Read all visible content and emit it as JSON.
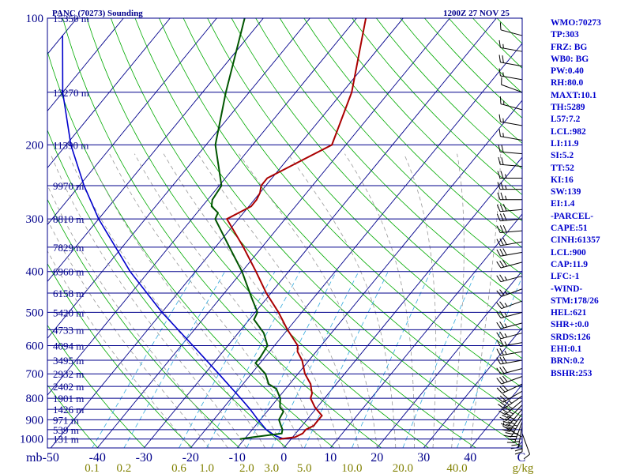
{
  "title_left": "PANC (70273) Sounding",
  "title_right": "1200Z 27 NOV 25",
  "colors": {
    "isobar": "#00008b",
    "isotherm": "#00008b",
    "dry_adiabat": "#00aa00",
    "moist_adiabat": "#999999",
    "mixing_ratio": "#33aadd",
    "temperature": "#aa0000",
    "dewpoint": "#005500",
    "parcel": "#0000cc",
    "wind": "#000000",
    "text": "#0000cd"
  },
  "chart_data": {
    "type": "skew-t",
    "pressure_ticks": [
      100,
      200,
      300,
      400,
      500,
      600,
      700,
      800,
      900,
      1000
    ],
    "pressure_range": [
      100,
      1050
    ],
    "temperature_ticks": [
      -50,
      -40,
      -30,
      -20,
      -10,
      0,
      10,
      20,
      30,
      40
    ],
    "temperature_tick_labels": [
      "-50",
      "-40",
      "-30",
      "-20",
      "-10",
      "0",
      "10",
      "20",
      "30",
      "40"
    ],
    "axis_unit_left": "mb",
    "axis_unit_right": "C",
    "mixing_ratio_values": [
      0.1,
      0.2,
      0.6,
      1.0,
      2.0,
      3.0,
      5.0,
      10.0,
      20.0,
      40.0
    ],
    "mixing_ratio_labels": [
      "0.1",
      "0.2",
      "0.6",
      "1.0",
      "2.0",
      "3.0",
      "5.0",
      "10.0",
      "20.0",
      "40.0"
    ],
    "mixing_ratio_unit": "g/kg",
    "heights": [
      {
        "p": 100,
        "label": "15350 m"
      },
      {
        "p": 150,
        "label": "13270 m"
      },
      {
        "p": 200,
        "label": "11390 m"
      },
      {
        "p": 250,
        "label": "9970 m"
      },
      {
        "p": 300,
        "label": "8810 m"
      },
      {
        "p": 350,
        "label": "7829 m"
      },
      {
        "p": 400,
        "label": "6960 m"
      },
      {
        "p": 450,
        "label": "6158 m"
      },
      {
        "p": 500,
        "label": "5420 m"
      },
      {
        "p": 550,
        "label": "4733 m"
      },
      {
        "p": 600,
        "label": "4094 m"
      },
      {
        "p": 650,
        "label": "3495 m"
      },
      {
        "p": 700,
        "label": "2932 m"
      },
      {
        "p": 750,
        "label": "2402 m"
      },
      {
        "p": 800,
        "label": "1901 m"
      },
      {
        "p": 850,
        "label": "1426 m"
      },
      {
        "p": 900,
        "label": "971 m"
      },
      {
        "p": 950,
        "label": "539 m"
      },
      {
        "p": 1000,
        "label": "131 m"
      }
    ],
    "temperature_profile": [
      {
        "p": 1000,
        "t": -2.5
      },
      {
        "p": 990,
        "t": 0.5
      },
      {
        "p": 970,
        "t": 1.5
      },
      {
        "p": 950,
        "t": 1.5
      },
      {
        "p": 930,
        "t": 2.5
      },
      {
        "p": 900,
        "t": 2.5
      },
      {
        "p": 880,
        "t": 2.5
      },
      {
        "p": 860,
        "t": 1.0
      },
      {
        "p": 840,
        "t": -0.5
      },
      {
        "p": 800,
        "t": -3.0
      },
      {
        "p": 780,
        "t": -3.5
      },
      {
        "p": 760,
        "t": -4.5
      },
      {
        "p": 740,
        "t": -5.5
      },
      {
        "p": 700,
        "t": -8.5
      },
      {
        "p": 650,
        "t": -11.5
      },
      {
        "p": 620,
        "t": -14.0
      },
      {
        "p": 600,
        "t": -15.0
      },
      {
        "p": 550,
        "t": -20.0
      },
      {
        "p": 500,
        "t": -25.0
      },
      {
        "p": 450,
        "t": -31.0
      },
      {
        "p": 400,
        "t": -37.0
      },
      {
        "p": 350,
        "t": -44.0
      },
      {
        "p": 300,
        "t": -52.5
      },
      {
        "p": 290,
        "t": -51.0
      },
      {
        "p": 280,
        "t": -49.5
      },
      {
        "p": 270,
        "t": -49.5
      },
      {
        "p": 260,
        "t": -50.0
      },
      {
        "p": 250,
        "t": -51.0
      },
      {
        "p": 240,
        "t": -51.0
      },
      {
        "p": 200,
        "t": -43.0
      },
      {
        "p": 150,
        "t": -48.0
      },
      {
        "p": 100,
        "t": -58.0
      }
    ],
    "dewpoint_profile": [
      {
        "p": 1000,
        "td": -11.0
      },
      {
        "p": 990,
        "td": -8.5
      },
      {
        "p": 970,
        "td": -3.0
      },
      {
        "p": 950,
        "td": -3.5
      },
      {
        "p": 930,
        "td": -4.5
      },
      {
        "p": 900,
        "td": -6.0
      },
      {
        "p": 860,
        "td": -6.5
      },
      {
        "p": 840,
        "td": -8.0
      },
      {
        "p": 800,
        "td": -9.5
      },
      {
        "p": 760,
        "td": -12.0
      },
      {
        "p": 740,
        "td": -14.5
      },
      {
        "p": 700,
        "td": -17.0
      },
      {
        "p": 660,
        "td": -21.0
      },
      {
        "p": 640,
        "td": -21.0
      },
      {
        "p": 600,
        "td": -21.5
      },
      {
        "p": 560,
        "td": -24.5
      },
      {
        "p": 520,
        "td": -29.0
      },
      {
        "p": 500,
        "td": -29.5
      },
      {
        "p": 460,
        "td": -33.5
      },
      {
        "p": 400,
        "td": -40.0
      },
      {
        "p": 350,
        "td": -47.0
      },
      {
        "p": 300,
        "td": -55.0
      },
      {
        "p": 290,
        "td": -55.5
      },
      {
        "p": 280,
        "td": -58.0
      },
      {
        "p": 270,
        "td": -59.0
      },
      {
        "p": 250,
        "td": -59.5
      },
      {
        "p": 200,
        "td": -68.0
      },
      {
        "p": 150,
        "td": -75.0
      },
      {
        "p": 100,
        "td": -84.0
      }
    ],
    "parcel_profile": [
      {
        "p": 1000,
        "t": -1.5
      },
      {
        "p": 982,
        "t": -4.0
      },
      {
        "p": 950,
        "t": -7.0
      },
      {
        "p": 900,
        "t": -10.5
      },
      {
        "p": 850,
        "t": -14.0
      },
      {
        "p": 800,
        "t": -18.0
      },
      {
        "p": 700,
        "t": -27.0
      },
      {
        "p": 600,
        "t": -37.5
      },
      {
        "p": 500,
        "t": -50.0
      },
      {
        "p": 400,
        "t": -64.0
      },
      {
        "p": 300,
        "t": -80.0
      },
      {
        "p": 250,
        "t": -89.0
      },
      {
        "p": 200,
        "t": -99.0
      },
      {
        "p": 150,
        "t": -110.0
      },
      {
        "p": 110,
        "t": -120.0
      }
    ],
    "winds": [
      {
        "p": 990,
        "dir": 300,
        "spd": 5
      },
      {
        "p": 970,
        "dir": 160,
        "spd": 10
      },
      {
        "p": 950,
        "dir": 180,
        "spd": 25
      },
      {
        "p": 930,
        "dir": 190,
        "spd": 30
      },
      {
        "p": 910,
        "dir": 200,
        "spd": 35
      },
      {
        "p": 890,
        "dir": 210,
        "spd": 45
      },
      {
        "p": 870,
        "dir": 215,
        "spd": 45
      },
      {
        "p": 850,
        "dir": 220,
        "spd": 40
      },
      {
        "p": 830,
        "dir": 225,
        "spd": 35
      },
      {
        "p": 810,
        "dir": 230,
        "spd": 35
      },
      {
        "p": 790,
        "dir": 235,
        "spd": 35
      },
      {
        "p": 770,
        "dir": 240,
        "spd": 30
      },
      {
        "p": 740,
        "dir": 245,
        "spd": 30
      },
      {
        "p": 710,
        "dir": 250,
        "spd": 30
      },
      {
        "p": 680,
        "dir": 255,
        "spd": 30
      },
      {
        "p": 650,
        "dir": 260,
        "spd": 30
      },
      {
        "p": 620,
        "dir": 260,
        "spd": 25
      },
      {
        "p": 590,
        "dir": 260,
        "spd": 25
      },
      {
        "p": 560,
        "dir": 255,
        "spd": 25
      },
      {
        "p": 530,
        "dir": 255,
        "spd": 25
      },
      {
        "p": 500,
        "dir": 255,
        "spd": 25
      },
      {
        "p": 470,
        "dir": 250,
        "spd": 25
      },
      {
        "p": 440,
        "dir": 250,
        "spd": 25
      },
      {
        "p": 410,
        "dir": 255,
        "spd": 25
      },
      {
        "p": 380,
        "dir": 255,
        "spd": 30
      },
      {
        "p": 360,
        "dir": 260,
        "spd": 30
      },
      {
        "p": 340,
        "dir": 260,
        "spd": 30
      },
      {
        "p": 320,
        "dir": 265,
        "spd": 30
      },
      {
        "p": 300,
        "dir": 265,
        "spd": 30
      },
      {
        "p": 285,
        "dir": 265,
        "spd": 30
      },
      {
        "p": 270,
        "dir": 270,
        "spd": 25
      },
      {
        "p": 255,
        "dir": 270,
        "spd": 25
      },
      {
        "p": 240,
        "dir": 270,
        "spd": 25
      },
      {
        "p": 225,
        "dir": 275,
        "spd": 20
      },
      {
        "p": 210,
        "dir": 275,
        "spd": 20
      },
      {
        "p": 195,
        "dir": 280,
        "spd": 15
      },
      {
        "p": 180,
        "dir": 280,
        "spd": 15
      },
      {
        "p": 165,
        "dir": 285,
        "spd": 15
      },
      {
        "p": 150,
        "dir": 290,
        "spd": 10
      },
      {
        "p": 140,
        "dir": 280,
        "spd": 15
      },
      {
        "p": 130,
        "dir": 280,
        "spd": 20
      },
      {
        "p": 120,
        "dir": 280,
        "spd": 15
      },
      {
        "p": 110,
        "dir": 285,
        "spd": 10
      }
    ]
  },
  "indices": [
    "WMO:70273",
    "TP:303",
    "FRZ: BG",
    "WB0: BG",
    "PW:0.40",
    "RH:80.0",
    "MAXT:10.1",
    "TH:5289",
    "L57:7.2",
    "LCL:982",
    "LI:11.9",
    "SI:5.2",
    "TT:52",
    "KI:16",
    "SW:139",
    "EI:1.4",
    "-PARCEL-",
    "CAPE:51",
    "CINH:61357",
    "LCL:900",
    "CAP:11.9",
    "LFC:-1",
    "-WIND-",
    "STM:178/26",
    "HEL:621",
    "SHR+:0.0",
    "SRDS:126",
    "EHI:0.1",
    "BRN:0.2",
    "BSHR:253"
  ]
}
